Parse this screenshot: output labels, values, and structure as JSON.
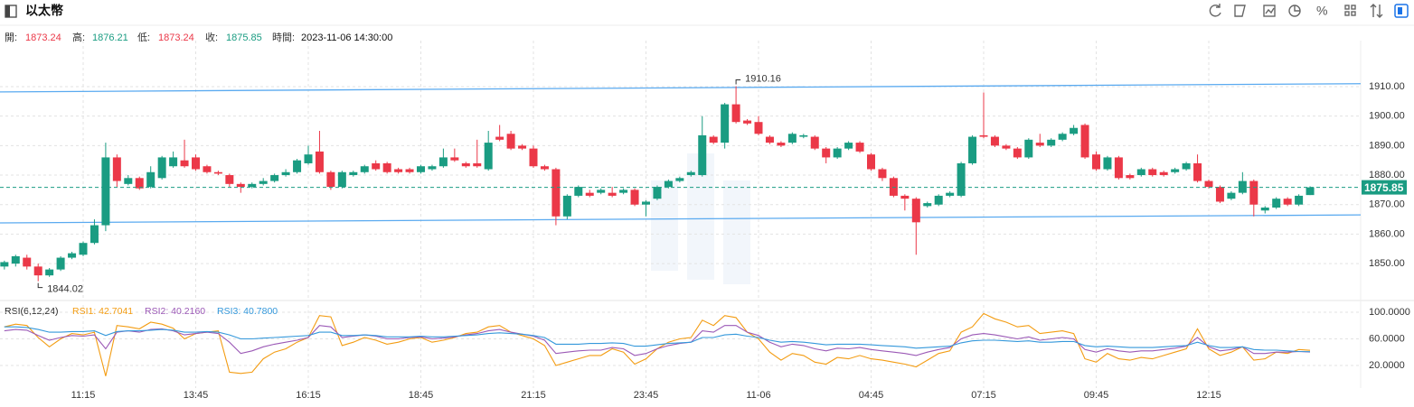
{
  "header": {
    "title": "以太幣",
    "open_label": "開:",
    "high_label": "高:",
    "low_label": "低:",
    "close_label": "收:",
    "time_label": "時間:",
    "time": "2023-11-06 14:30:00"
  },
  "chart_data": [
    {
      "type": "candlestick",
      "up_color": "#1a9c82",
      "down_color": "#eb3848",
      "categories": [
        null,
        null,
        null,
        null,
        null,
        null,
        null,
        "11:15",
        null,
        null,
        null,
        null,
        null,
        null,
        null,
        null,
        null,
        "13:45",
        null,
        null,
        null,
        null,
        null,
        null,
        null,
        null,
        null,
        "16:15",
        null,
        null,
        null,
        null,
        null,
        null,
        null,
        null,
        null,
        "18:45",
        null,
        null,
        null,
        null,
        null,
        null,
        null,
        null,
        null,
        "21:15",
        null,
        null,
        null,
        null,
        null,
        null,
        null,
        null,
        null,
        "23:45",
        null,
        null,
        null,
        null,
        null,
        null,
        null,
        null,
        null,
        "11-06",
        null,
        null,
        null,
        null,
        null,
        null,
        null,
        null,
        null,
        "04:45",
        null,
        null,
        null,
        null,
        null,
        null,
        null,
        null,
        null,
        "07:15",
        null,
        null,
        null,
        null,
        null,
        null,
        null,
        null,
        null,
        "09:45",
        null,
        null,
        null,
        null,
        null,
        null,
        null,
        null,
        null,
        "12:15",
        null,
        null,
        null,
        null,
        null,
        null,
        null,
        null,
        null
      ],
      "open": [
        1849,
        1850,
        1852,
        1849,
        1846,
        1848,
        1852,
        1853,
        1857,
        1863,
        1886,
        1877,
        1879,
        1876,
        1879,
        1883,
        1885,
        1886,
        1883,
        1881,
        1880,
        1877,
        1876,
        1877,
        1878,
        1880,
        1881,
        1884,
        1888,
        1881,
        1876,
        1880,
        1881,
        1884,
        1884,
        1882,
        1882,
        1881,
        1882,
        1883,
        1886,
        1884,
        1884,
        1882,
        1893,
        1894,
        1890,
        1889,
        1883,
        1882,
        1866,
        1873,
        1874,
        1874,
        1874,
        1874,
        1875,
        1870,
        1872,
        1876,
        1878,
        1880,
        1880,
        1893,
        1891,
        1904,
        1898.5,
        1898,
        1893,
        1891,
        1891,
        1893,
        1893,
        1889,
        1886,
        1889,
        1891,
        1887,
        1882,
        1879,
        1873,
        1872,
        1869.5,
        1870,
        1873,
        1873,
        1884,
        1893.5,
        1893,
        1890,
        1889,
        1886,
        1891,
        1890,
        1892,
        1894,
        1897,
        1887,
        1882,
        1886,
        1880,
        1880,
        1882,
        1881,
        1881,
        1882,
        1884,
        1878,
        1876,
        1872,
        1874,
        1878,
        1868,
        1869,
        1872,
        1870,
        1873.24
      ],
      "high": [
        1851,
        1853,
        1853,
        1850,
        1848.5,
        1852.5,
        1854,
        1857.5,
        1865,
        1891,
        1887,
        1880,
        1879.5,
        1883,
        1886.5,
        1888,
        1892,
        1887,
        1883.5,
        1881.5,
        1880.5,
        1877.5,
        1877.5,
        1879,
        1880.5,
        1882,
        1885.5,
        1890,
        1895,
        1881.5,
        1881.5,
        1881.5,
        1883.5,
        1885,
        1884.5,
        1882.5,
        1882.5,
        1883.5,
        1883.5,
        1889,
        1889,
        1884.5,
        1892,
        1895,
        1897,
        1895,
        1890.5,
        1890,
        1883.5,
        1882.5,
        1873.5,
        1876.5,
        1875,
        1875.5,
        1876,
        1875.5,
        1875.5,
        1871.5,
        1876.5,
        1878.5,
        1879.5,
        1881.5,
        1900,
        1893.5,
        1904.5,
        1910.16,
        1899,
        1900,
        1893.5,
        1891.5,
        1894.5,
        1894,
        1893.5,
        1889.5,
        1889.5,
        1891.5,
        1891.5,
        1887.5,
        1882.5,
        1879.5,
        1873.5,
        1872.5,
        1871,
        1873.5,
        1874.5,
        1884.5,
        1893.5,
        1908,
        1893.5,
        1890.5,
        1889.5,
        1892.5,
        1894,
        1892.5,
        1894.5,
        1897,
        1897.5,
        1888,
        1886.5,
        1886.5,
        1880.5,
        1882.5,
        1882.5,
        1881.5,
        1882.5,
        1884.5,
        1887,
        1878.5,
        1876.5,
        1874.5,
        1881,
        1878.5,
        1869.5,
        1872.5,
        1872.5,
        1873.5,
        1876.21
      ],
      "low": [
        1848,
        1849,
        1848,
        1844.02,
        1845.5,
        1847.5,
        1851.5,
        1852.5,
        1856.5,
        1861,
        1876,
        1876.5,
        1875,
        1875.5,
        1878.5,
        1882.5,
        1882.5,
        1881.5,
        1880.5,
        1880,
        1876,
        1874,
        1875.5,
        1876.5,
        1877.5,
        1879.5,
        1880.5,
        1883.5,
        1880.5,
        1875,
        1875.5,
        1879.5,
        1880.5,
        1881.5,
        1880.5,
        1880.5,
        1880.5,
        1880.5,
        1881.5,
        1882.5,
        1884.5,
        1882.5,
        1882.5,
        1881.5,
        1891.5,
        1888.5,
        1888.5,
        1882.5,
        1881.5,
        1863,
        1865,
        1872.5,
        1872.5,
        1873.5,
        1872.5,
        1873.5,
        1869.5,
        1866,
        1871.5,
        1875.5,
        1877.5,
        1879.5,
        1879.5,
        1890.5,
        1889,
        1897.5,
        1897,
        1893.5,
        1890.5,
        1889.5,
        1890.5,
        1892.5,
        1888.5,
        1884,
        1885.5,
        1888.5,
        1887.5,
        1881.5,
        1878,
        1872.5,
        1868,
        1853,
        1869,
        1869.5,
        1872.5,
        1872.5,
        1883.5,
        1892.5,
        1889.5,
        1888.5,
        1885.5,
        1885.5,
        1889.5,
        1889.5,
        1891.5,
        1893.5,
        1885.5,
        1881.5,
        1881.5,
        1878.5,
        1878.5,
        1879.5,
        1879.5,
        1879.5,
        1880.5,
        1881.5,
        1877.5,
        1875.5,
        1870.5,
        1871.5,
        1873.5,
        1866,
        1867,
        1868.5,
        1869.5,
        1869.5,
        1873.24
      ],
      "close": [
        1850.5,
        1852.5,
        1849,
        1846,
        1848,
        1852,
        1853.5,
        1857,
        1863,
        1886,
        1878,
        1879,
        1875.5,
        1881,
        1886,
        1886,
        1883,
        1882,
        1881,
        1880.5,
        1877,
        1876,
        1877,
        1878,
        1880,
        1881,
        1885,
        1887,
        1881,
        1876,
        1881,
        1881,
        1883,
        1882,
        1881,
        1881,
        1881,
        1883,
        1883,
        1886,
        1885,
        1883,
        1883,
        1891,
        1892,
        1889,
        1889,
        1883,
        1882,
        1866,
        1873,
        1876,
        1873,
        1875,
        1873,
        1875,
        1870,
        1871,
        1876,
        1878,
        1879,
        1881,
        1893.5,
        1891,
        1904,
        1898,
        1897.5,
        1894,
        1891,
        1890,
        1894,
        1893.5,
        1889,
        1886,
        1889,
        1891,
        1888,
        1882,
        1879,
        1873,
        1872,
        1864,
        1870.5,
        1873,
        1874,
        1884,
        1893,
        1893,
        1890,
        1889,
        1886,
        1892,
        1890,
        1892,
        1894,
        1896,
        1886,
        1882,
        1886,
        1879,
        1879,
        1882,
        1880,
        1880,
        1882,
        1884,
        1878,
        1876,
        1871,
        1874,
        1878,
        1870,
        1869,
        1872,
        1870,
        1873,
        1875.85
      ],
      "ylim": [
        1838.4,
        1925.6
      ],
      "yticks": [
        {
          "value": 1850,
          "label": "1850.00"
        },
        {
          "value": 1860,
          "label": "1860.00"
        },
        {
          "value": 1870,
          "label": "1870.00"
        },
        {
          "value": 1880,
          "label": "1880.00"
        },
        {
          "value": 1890,
          "label": "1890.00"
        },
        {
          "value": 1900,
          "label": "1900.00"
        },
        {
          "value": 1910,
          "label": "1910.00"
        }
      ],
      "channel": {
        "color": "#5aaaf0",
        "upper": [
          1908.2,
          1911
        ],
        "lower": [
          1863.8,
          1866.5
        ]
      },
      "grid": true
    },
    {
      "type": "line",
      "title": "RSI(6,12,24)",
      "ylim": [
        -13.9,
        110.8
      ],
      "yticks": [
        {
          "value": 20,
          "label": "20.0000"
        },
        {
          "value": 60,
          "label": "60.0000"
        },
        {
          "value": 100,
          "label": "100.0000"
        }
      ],
      "series": [
        {
          "name": "RSI1: 42.7041",
          "color": "#f39c12",
          "values": [
            78,
            82,
            80,
            62,
            48,
            60,
            68,
            66,
            70,
            4,
            80,
            78,
            75,
            85,
            82,
            76,
            60,
            68,
            70,
            72,
            10,
            8,
            10,
            30,
            40,
            45,
            55,
            62,
            95,
            93,
            50,
            55,
            62,
            58,
            52,
            55,
            60,
            62,
            55,
            58,
            62,
            68,
            70,
            78,
            80,
            70,
            65,
            60,
            50,
            20,
            25,
            30,
            35,
            35,
            45,
            40,
            22,
            30,
            45,
            55,
            60,
            62,
            88,
            80,
            95,
            92,
            70,
            60,
            40,
            28,
            38,
            35,
            25,
            22,
            32,
            30,
            35,
            30,
            28,
            25,
            22,
            18,
            28,
            38,
            42,
            70,
            78,
            98,
            90,
            85,
            78,
            80,
            68,
            70,
            72,
            68,
            30,
            25,
            38,
            30,
            28,
            32,
            30,
            35,
            40,
            45,
            75,
            45,
            35,
            40,
            48,
            28,
            30,
            40,
            38,
            44,
            42.7041
          ]
        },
        {
          "name": "RSI2: 40.2160",
          "color": "#9b59b6",
          "values": [
            72,
            74,
            73,
            65,
            58,
            62,
            65,
            64,
            66,
            45,
            70,
            72,
            70,
            74,
            75,
            72,
            66,
            68,
            70,
            68,
            55,
            38,
            42,
            48,
            52,
            55,
            58,
            62,
            80,
            78,
            62,
            64,
            66,
            64,
            60,
            60,
            62,
            63,
            60,
            61,
            63,
            66,
            68,
            72,
            74,
            70,
            67,
            64,
            58,
            38,
            40,
            42,
            43,
            43,
            47,
            45,
            35,
            38,
            45,
            50,
            53,
            55,
            72,
            70,
            80,
            80,
            70,
            65,
            55,
            48,
            52,
            50,
            45,
            42,
            46,
            45,
            47,
            44,
            42,
            40,
            38,
            35,
            40,
            44,
            47,
            60,
            66,
            68,
            66,
            63,
            60,
            63,
            58,
            60,
            62,
            60,
            44,
            40,
            45,
            42,
            40,
            42,
            42,
            44,
            46,
            49,
            62,
            48,
            42,
            44,
            48,
            38,
            38,
            40,
            40,
            41,
            40.216
          ]
        },
        {
          "name": "RSI3: 40.7800",
          "color": "#3498db",
          "values": [
            78,
            78,
            77,
            74,
            70,
            70,
            71,
            71,
            72,
            65,
            71,
            72,
            72,
            73,
            74,
            73,
            70,
            70,
            71,
            70,
            66,
            60,
            60,
            61,
            62,
            63,
            64,
            65,
            70,
            70,
            65,
            65,
            66,
            65,
            63,
            63,
            63,
            64,
            63,
            63,
            64,
            65,
            66,
            68,
            69,
            68,
            67,
            65,
            62,
            52,
            52,
            52,
            53,
            53,
            54,
            53,
            49,
            49,
            51,
            53,
            54,
            55,
            62,
            62,
            66,
            67,
            64,
            62,
            58,
            55,
            56,
            55,
            53,
            51,
            52,
            52,
            52,
            51,
            50,
            49,
            48,
            46,
            47,
            48,
            49,
            54,
            57,
            58,
            58,
            57,
            56,
            57,
            55,
            55,
            56,
            56,
            50,
            48,
            49,
            48,
            47,
            47,
            47,
            48,
            49,
            50,
            55,
            50,
            47,
            47,
            48,
            44,
            43,
            43,
            42,
            41,
            40.78
          ]
        }
      ],
      "grid": true
    }
  ]
}
